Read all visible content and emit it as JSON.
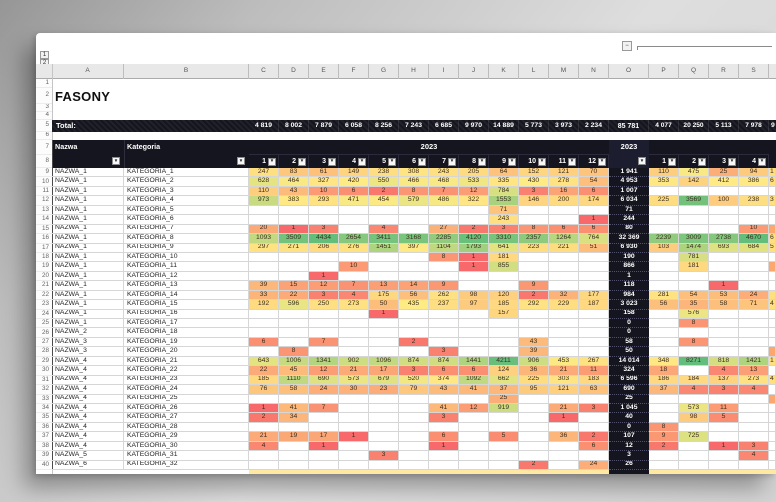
{
  "title": "FASONY",
  "outline": {
    "l1": "1",
    "l2": "2",
    "collapse": "−"
  },
  "columns": {
    "letters": [
      "A",
      "B",
      "C",
      "D",
      "E",
      "F",
      "G",
      "H",
      "I",
      "J",
      "K",
      "L",
      "M",
      "N",
      "O",
      "P",
      "Q",
      "R",
      "S"
    ]
  },
  "header": {
    "nazwa": "Nazwa",
    "kategoria": "Kategoria",
    "year_left": "2023",
    "year_total": "2023",
    "months_left": [
      "1",
      "2",
      "3",
      "4",
      "5",
      "6",
      "7",
      "8",
      "9",
      "10",
      "11",
      "12"
    ],
    "months_right": [
      "1",
      "2",
      "3",
      "4"
    ],
    "filter_icon": "▼"
  },
  "totals": {
    "label": "Total:",
    "months": [
      "4 819",
      "8 002",
      "7 879",
      "6 058",
      "8 256",
      "7 243",
      "6 685",
      "9 970",
      "14 889",
      "5 773",
      "3 973",
      "2 234"
    ],
    "year": "85 781",
    "right": [
      "4 077",
      "20 250",
      "5 113",
      "7 978"
    ],
    "t": "9"
  },
  "rows": [
    {
      "num": 9,
      "name": "NAZWA_1",
      "cat": "KATEGORIA_1",
      "m": [
        247,
        83,
        61,
        149,
        238,
        308,
        243,
        205,
        64,
        152,
        121,
        70
      ],
      "total": "1 941",
      "r": [
        110,
        475,
        25,
        94
      ],
      "t": "1",
      "tc": "y"
    },
    {
      "num": 10,
      "name": "NAZWA_1",
      "cat": "KATEGORIA_2",
      "m": [
        628,
        464,
        327,
        420,
        550,
        466,
        468,
        533,
        335,
        430,
        278,
        54
      ],
      "total": "4 953",
      "r": [
        353,
        142,
        412,
        386
      ],
      "t": "6",
      "tc": "y"
    },
    {
      "num": 11,
      "name": "NAZWA_1",
      "cat": "KATEGORIA_3",
      "m": [
        110,
        43,
        10,
        6,
        2,
        8,
        7,
        12,
        784,
        3,
        16,
        6
      ],
      "total": "1 007",
      "r": null
    },
    {
      "num": 12,
      "name": "NAZWA_1",
      "cat": "KATEGORIA_4",
      "m": [
        973,
        383,
        293,
        471,
        454,
        579,
        486,
        322,
        1553,
        146,
        200,
        174
      ],
      "total": "6 034",
      "r": [
        225,
        3569,
        100,
        238
      ],
      "t": "3",
      "tc": "y"
    },
    {
      "num": 13,
      "name": "NAZWA_1",
      "cat": "KATEGORIA_5",
      "m": [
        null,
        null,
        null,
        null,
        null,
        null,
        null,
        null,
        71,
        null,
        null,
        null
      ],
      "total": "71",
      "r": null
    },
    {
      "num": 14,
      "name": "NAZWA_1",
      "cat": "KATEGORIA_6",
      "m": [
        null,
        null,
        null,
        null,
        null,
        null,
        null,
        null,
        243,
        null,
        null,
        1
      ],
      "total": "244",
      "r": null
    },
    {
      "num": 15,
      "name": "NAZWA_1",
      "cat": "KATEGORIA_7",
      "m": [
        20,
        1,
        3,
        null,
        4,
        null,
        27,
        2,
        3,
        8,
        6,
        6
      ],
      "total": "80",
      "r": [
        null,
        null,
        null,
        10
      ],
      "t": "",
      "tc": "o"
    },
    {
      "num": 16,
      "name": "NAZWA_1",
      "cat": "KATEGORIA_8",
      "m": [
        1093,
        3509,
        4434,
        2654,
        3411,
        3168,
        2285,
        4120,
        3310,
        2357,
        1264,
        764
      ],
      "total": "32 369",
      "r": [
        2239,
        3009,
        2738,
        4670
      ],
      "t": "6",
      "tc": "y"
    },
    {
      "num": 17,
      "name": "NAZWA_1",
      "cat": "KATEGORIA_9",
      "m": [
        297,
        271,
        206,
        276,
        1451,
        397,
        1104,
        1793,
        641,
        223,
        221,
        51
      ],
      "total": "6 930",
      "r": [
        103,
        1474,
        693,
        684
      ],
      "t": "5",
      "tc": "y"
    },
    {
      "num": 18,
      "name": "NAZWA_1",
      "cat": "KATEGORIA_10",
      "m": [
        null,
        null,
        null,
        null,
        null,
        null,
        8,
        1,
        181,
        null,
        null,
        null
      ],
      "total": "190",
      "r": [
        null,
        781,
        null,
        null
      ]
    },
    {
      "num": 19,
      "name": "NAZWA_1",
      "cat": "KATEGORIA_11",
      "m": [
        null,
        null,
        null,
        10,
        null,
        null,
        null,
        1,
        855,
        null,
        null,
        null
      ],
      "total": "866",
      "r": [
        null,
        181,
        null,
        null
      ],
      "t": "",
      "tc": "o"
    },
    {
      "num": 20,
      "name": "NAZWA_1",
      "cat": "KATEGORIA_12",
      "m": [
        null,
        null,
        1,
        null,
        null,
        null,
        null,
        null,
        null,
        null,
        null,
        null
      ],
      "total": "1",
      "r": null
    },
    {
      "num": 21,
      "name": "NAZWA_1",
      "cat": "KATEGORIA_13",
      "m": [
        39,
        15,
        12,
        7,
        13,
        14,
        9,
        null,
        null,
        9,
        null,
        null
      ],
      "total": "118",
      "r": [
        null,
        null,
        1,
        null
      ]
    },
    {
      "num": 22,
      "name": "NAZWA_1",
      "cat": "KATEGORIA_14",
      "m": [
        33,
        22,
        3,
        4,
        175,
        56,
        262,
        98,
        120,
        2,
        32,
        177
      ],
      "total": "984",
      "r": [
        281,
        54,
        53,
        24
      ],
      "t": "",
      "tc": "y"
    },
    {
      "num": 23,
      "name": "NAZWA_1",
      "cat": "KATEGORIA_15",
      "m": [
        192,
        596,
        250,
        273,
        50,
        435,
        237,
        97,
        185,
        292,
        229,
        187
      ],
      "total": "3 023",
      "r": [
        56,
        35,
        58,
        71
      ],
      "t": "4",
      "tc": "y"
    },
    {
      "num": 24,
      "name": "NAZWA_1",
      "cat": "KATEGORIA_16",
      "m": [
        null,
        null,
        null,
        null,
        1,
        null,
        null,
        null,
        157,
        null,
        null,
        null
      ],
      "total": "158",
      "r": [
        null,
        576,
        null,
        null
      ]
    },
    {
      "num": 25,
      "name": "NAZWA_1",
      "cat": "KATEGORIA_17",
      "m": [
        null,
        null,
        null,
        null,
        null,
        null,
        null,
        null,
        null,
        null,
        null,
        null
      ],
      "total": "0",
      "r": [
        null,
        8,
        null,
        null
      ]
    },
    {
      "num": 26,
      "name": "NAZWA_2",
      "cat": "KATEGORIA_18",
      "m": [
        null,
        null,
        null,
        null,
        null,
        null,
        null,
        null,
        null,
        null,
        null,
        null
      ],
      "total": "0",
      "r": null
    },
    {
      "num": 27,
      "name": "NAZWA_3",
      "cat": "KATEGORIA_19",
      "m": [
        6,
        null,
        7,
        null,
        null,
        2,
        null,
        null,
        null,
        43,
        null,
        null
      ],
      "total": "58",
      "r": [
        null,
        8,
        null,
        null
      ]
    },
    {
      "num": 28,
      "name": "NAZWA_3",
      "cat": "KATEGORIA_20",
      "m": [
        null,
        8,
        null,
        null,
        null,
        null,
        3,
        null,
        null,
        39,
        null,
        null
      ],
      "total": "50",
      "r": null,
      "t": "",
      "tc": "o"
    },
    {
      "num": 29,
      "name": "NAZWA_4",
      "cat": "KATEGORIA_21",
      "m": [
        643,
        1006,
        1341,
        902,
        1096,
        874,
        874,
        1441,
        4211,
        906,
        453,
        267
      ],
      "total": "14 014",
      "r": [
        348,
        8271,
        818,
        1421
      ],
      "t": "1",
      "tc": "y"
    },
    {
      "num": 30,
      "name": "NAZWA_4",
      "cat": "KATEGORIA_22",
      "m": [
        22,
        45,
        12,
        21,
        17,
        3,
        6,
        6,
        124,
        36,
        21,
        11
      ],
      "total": "324",
      "r": [
        18,
        null,
        4,
        13
      ]
    },
    {
      "num": 31,
      "name": "NAZWA_4",
      "cat": "KATEGORIA_23",
      "m": [
        185,
        1110,
        690,
        573,
        679,
        520,
        374,
        1092,
        662,
        225,
        303,
        183
      ],
      "total": "6 596",
      "r": [
        186,
        184,
        137,
        273
      ],
      "t": "4",
      "tc": "y"
    },
    {
      "num": 32,
      "name": "NAZWA_4",
      "cat": "KATEGORIA_24",
      "m": [
        76,
        58,
        24,
        30,
        23,
        79,
        43,
        41,
        37,
        95,
        121,
        63
      ],
      "total": "690",
      "r": [
        37,
        4,
        3,
        4
      ]
    },
    {
      "num": 33,
      "name": "NAZWA_4",
      "cat": "KATEGORIA_25",
      "m": [
        null,
        null,
        null,
        null,
        null,
        null,
        null,
        null,
        25,
        null,
        null,
        null
      ],
      "total": "25",
      "r": null,
      "t": "",
      "tc": "o"
    },
    {
      "num": 34,
      "name": "NAZWA_4",
      "cat": "KATEGORIA_26",
      "m": [
        1,
        41,
        7,
        null,
        null,
        null,
        41,
        12,
        919,
        null,
        21,
        3
      ],
      "total": "1 045",
      "r": [
        null,
        573,
        11,
        null
      ]
    },
    {
      "num": 35,
      "name": "NAZWA_4",
      "cat": "KATEGORIA_27",
      "m": [
        2,
        34,
        null,
        null,
        null,
        null,
        3,
        null,
        null,
        null,
        1,
        null
      ],
      "total": "40",
      "r": [
        null,
        98,
        5,
        null
      ]
    },
    {
      "num": 36,
      "name": "NAZWA_4",
      "cat": "KATEGORIA_28",
      "m": [
        null,
        null,
        null,
        null,
        null,
        null,
        null,
        null,
        null,
        null,
        null,
        null
      ],
      "total": "0",
      "r": [
        8,
        null,
        null,
        null
      ]
    },
    {
      "num": 37,
      "name": "NAZWA_4",
      "cat": "KATEGORIA_29",
      "m": [
        21,
        19,
        17,
        1,
        null,
        null,
        6,
        null,
        5,
        null,
        36,
        2
      ],
      "total": "107",
      "r": [
        9,
        725,
        null,
        null
      ]
    },
    {
      "num": 38,
      "name": "NAZWA_4",
      "cat": "KATEGORIA_30",
      "m": [
        4,
        null,
        1,
        null,
        null,
        null,
        1,
        null,
        null,
        null,
        null,
        6
      ],
      "total": "12",
      "r": [
        2,
        null,
        1,
        3
      ]
    },
    {
      "num": 39,
      "name": "NAZWA_5",
      "cat": "KATEGORIA_31",
      "m": [
        null,
        null,
        null,
        null,
        3,
        null,
        null,
        null,
        null,
        null,
        null,
        null
      ],
      "total": "3",
      "r": [
        null,
        null,
        null,
        4
      ]
    },
    {
      "num": 40,
      "name": "NAZWA_6",
      "cat": "KATEGORIA_32",
      "m": [
        null,
        null,
        null,
        null,
        null,
        null,
        null,
        null,
        null,
        2,
        null,
        24
      ],
      "total": "26",
      "r": null
    }
  ],
  "colors": {
    "dark_bg": "#15151f",
    "scale_low": "#F8696B",
    "scale_mid": "#FFEB84",
    "scale_high": "#63BE7B",
    "grid_line": "#d6d6d6",
    "strip": "#ffe9a2"
  }
}
